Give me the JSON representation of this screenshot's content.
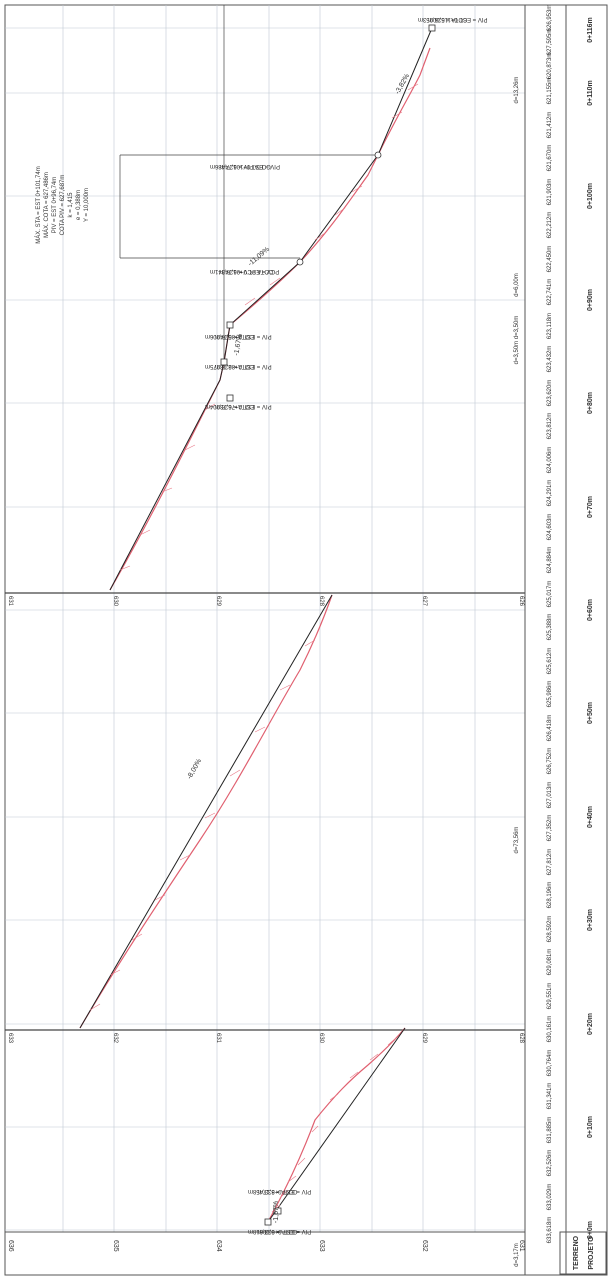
{
  "legend": {
    "terreno": "TERRENO",
    "projeto": "PROJETO"
  },
  "elevations": {
    "section1": [
      "636",
      "635",
      "634",
      "633",
      "632",
      "631"
    ],
    "section2": [
      "633",
      "632",
      "631",
      "630",
      "629",
      "628"
    ],
    "section3": [
      "631",
      "630",
      "629",
      "628",
      "627",
      "626"
    ]
  },
  "stations": [
    "0+0m",
    "0+10m",
    "0+20m",
    "0+30m",
    "0+40m",
    "0+50m",
    "0+60m",
    "0+70m",
    "0+80m",
    "0+90m",
    "0+100m",
    "0+110m",
    "0+116m"
  ],
  "terrain_values": [
    "633,618m",
    "633,029m",
    "632,526m",
    "631,885m",
    "631,341m",
    "630,764m",
    "630,161m",
    "629,551m",
    "629,081m",
    "628,592m",
    "628,196m",
    "627,812m",
    "627,352m",
    "627,013m",
    "626,752m",
    "626,418m",
    "625,986m",
    "625,612m",
    "625,388m",
    "625,017m",
    "624,884m",
    "624,603m",
    "624,291m",
    "624,006m",
    "623,812m",
    "623,620m",
    "623,432m",
    "623,118m",
    "622,741m",
    "622,450m",
    "622,212m",
    "621,903m",
    "621,670m",
    "621,412m",
    "621,155m",
    "620,873m",
    "627,595m",
    "626,953m"
  ],
  "distances": [
    "d=3,17m",
    "d=73,56m",
    "d=3,50m d=3,50m",
    "d=6,00m",
    "d=13,26m"
  ],
  "slopes": [
    "-1,67%",
    "-8,00%",
    "-1,67%",
    "-11,09%",
    "-3,82%"
  ],
  "pivs": [
    {
      "label": "PIV = EST 0+0,00m",
      "cota": "COTA = 633,618m"
    },
    {
      "label": "PIV = EST 0+3,17m",
      "cota": "COTA = 633,458m"
    },
    {
      "label": "PIV = EST 0+76,73m",
      "cota": "COTA = 628,904m"
    },
    {
      "label": "PIV = EST 0+82,23m",
      "cota": "COTA = 628,975m"
    },
    {
      "label": "PIV = EST 0+85,74m",
      "cota": "COTA = 628,906m"
    },
    {
      "label": "PCV = EST 0+91,74m",
      "cota": "COTA PCV = 628,341m"
    },
    {
      "label": "PIV = EST 0+101,74m",
      "cota": "COTA PIV = 627,486m"
    },
    {
      "label": "PIV = EST 0+115,00m",
      "cota": "COTA = 626,953m"
    }
  ],
  "curve": {
    "line1": "MÁX. STA = EST 0+101,74m",
    "line2": "MÁX. COTA = 627,486m",
    "line3": "PIV = EST 0+96,74m",
    "line4": "COTA PIV = 627,687m",
    "line5": "k = 1,415",
    "line6": "e = 0,388m",
    "line7": "Y = 10,000m"
  },
  "colors": {
    "terrain": "#e06070",
    "grid": "#bfc8d4",
    "ink": "#333333"
  }
}
